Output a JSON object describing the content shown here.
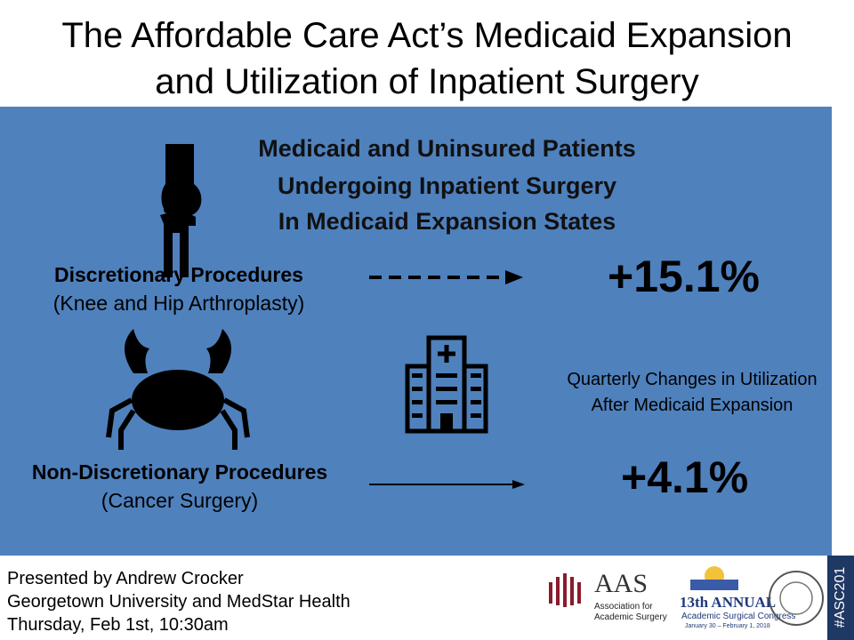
{
  "header": {
    "title_lines": [
      "The Affordable Care Act’s Medicaid Expansion",
      "and Utilization of Inpatient Surgery"
    ]
  },
  "panel": {
    "heading_lines": [
      "Medicaid and Uninsured Patients",
      "Undergoing Inpatient Surgery",
      "In Medicaid Expansion States"
    ],
    "discretionary": {
      "label": "Discretionary Procedures",
      "detail": "(Knee and Hip Arthroplasty)",
      "change": "+15.1%"
    },
    "non_discretionary": {
      "label": "Non-Discretionary Procedures",
      "detail": "(Cancer Surgery)",
      "change": "+4.1%"
    },
    "caption_lines": [
      "Quarterly Changes in Utilization",
      "After Medicaid Expansion"
    ]
  },
  "footer": {
    "presenter_lines": [
      "Presented by Andrew Crocker",
      "Georgetown University and MedStar Health",
      "Thursday, Feb 1st, 10:30am"
    ],
    "aas": {
      "abbr": "AAS",
      "name_lines": [
        "Association for",
        "Academic Surgery"
      ]
    },
    "congress": {
      "edition": "13th ANNUAL",
      "name": "Academic Surgical Congress",
      "dates": "January 30 – February 1, 2018"
    },
    "hashtag": "#ASC201"
  }
}
